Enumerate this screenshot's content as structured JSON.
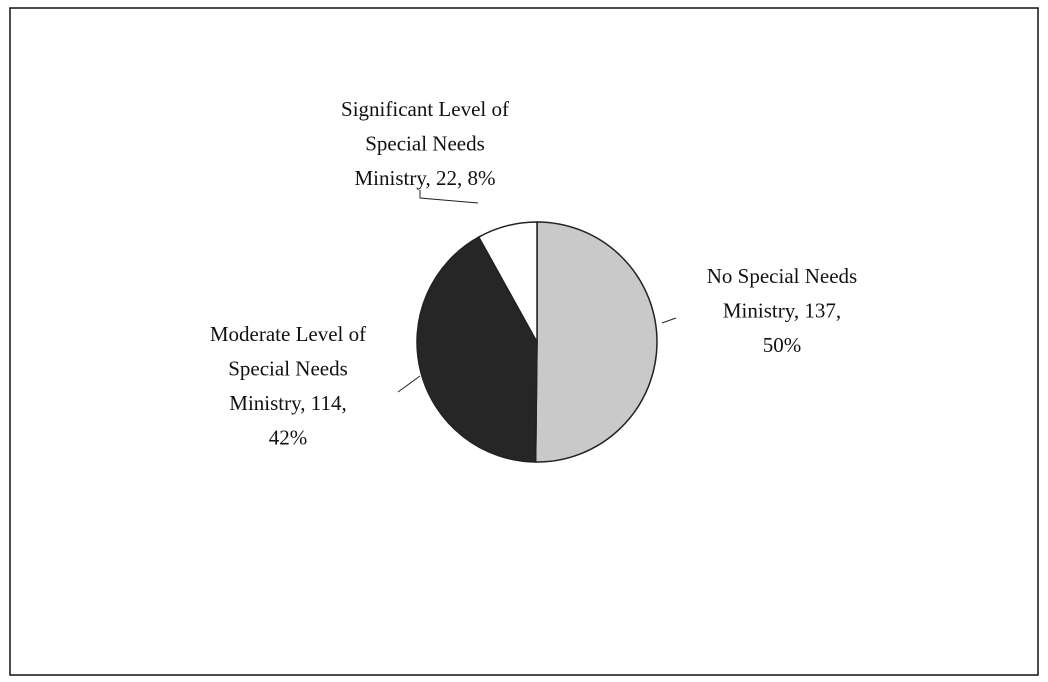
{
  "chart_data": {
    "type": "pie",
    "values": [
      137,
      114,
      22
    ],
    "value_labels": [
      [
        "No Special Needs",
        "Ministry, 137,",
        "50%"
      ],
      [
        "Moderate Level of",
        "Special Needs",
        "Ministry, 114,",
        "42%"
      ],
      [
        "Significant Level of",
        "Special Needs",
        "Ministry, 22, 8%"
      ]
    ],
    "colors": [
      "#c9c9c9",
      "#262626",
      "#ffffff"
    ]
  }
}
